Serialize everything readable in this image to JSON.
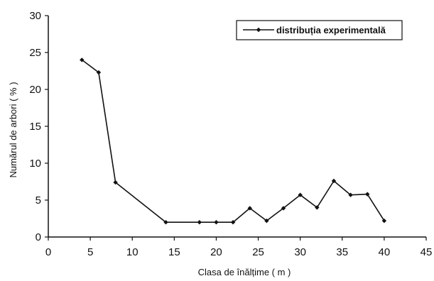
{
  "chart_data": {
    "type": "line",
    "title": "",
    "xlabel": "Clasa de înălțime   ( m )",
    "ylabel": "Numărul de arbori   ( % )",
    "xlim": [
      0,
      45
    ],
    "ylim": [
      0,
      30
    ],
    "xticks": [
      "0",
      "5",
      "10",
      "15",
      "20",
      "25",
      "30",
      "35",
      "40",
      "45"
    ],
    "yticks": [
      "0",
      "5",
      "10",
      "15",
      "20",
      "25",
      "30"
    ],
    "grid": false,
    "legend_position": "top-right",
    "series": [
      {
        "name": "distribuția experimentală",
        "color": "#111111",
        "marker": "diamond",
        "x": [
          4,
          6,
          8,
          14,
          18,
          20,
          22,
          24,
          26,
          28,
          30,
          32,
          34,
          36,
          38,
          40
        ],
        "y": [
          24,
          22.3,
          7.4,
          2,
          2,
          2,
          2,
          3.9,
          2.2,
          3.9,
          5.7,
          4,
          7.6,
          5.7,
          5.8,
          2.2
        ]
      }
    ]
  }
}
